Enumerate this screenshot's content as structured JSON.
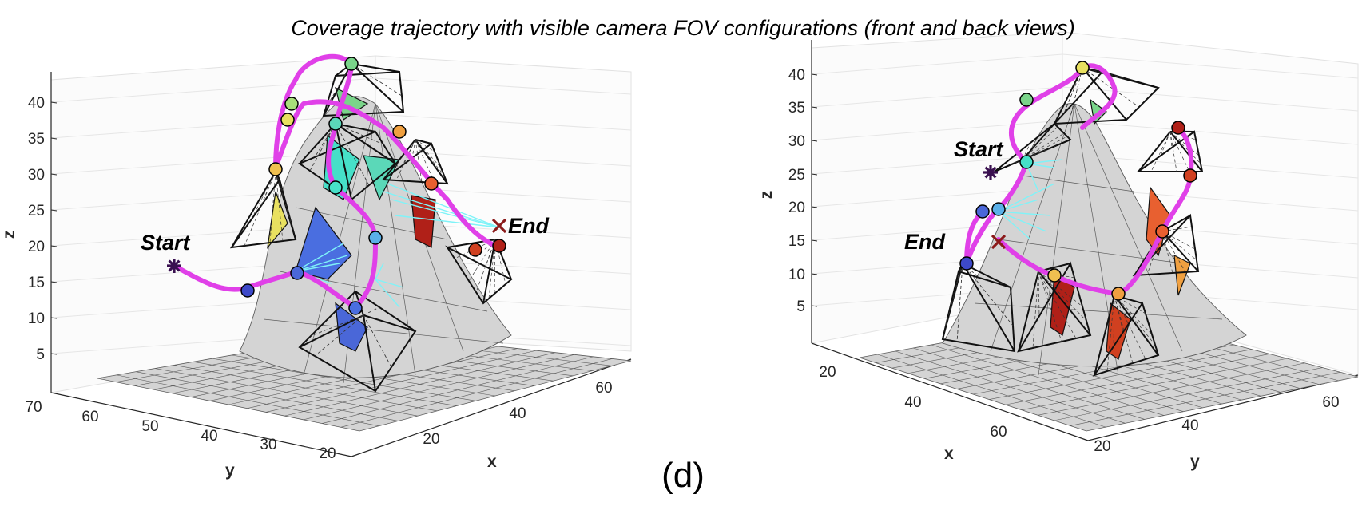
{
  "chart_data": {
    "type": "surface3d",
    "title": "Coverage trajectory with visible camera FOV configurations (front and back views)",
    "panel_label": "(d)",
    "colors": {
      "trajectory": "#e040e8",
      "surface": "#d4d4d4",
      "mesh": "#5a5a5a",
      "frustum": "#111111",
      "end_marker": "#8b1a1a",
      "start_marker": "#3a1050",
      "sensed": "#7ff3f8"
    },
    "views": [
      {
        "name": "front",
        "zlabel": "z",
        "xlabel": "x",
        "ylabel": "y",
        "z_ticks": [
          "5",
          "10",
          "15",
          "20",
          "25",
          "30",
          "35",
          "40"
        ],
        "x_ticks": [
          "20",
          "40",
          "60"
        ],
        "y_ticks": [
          "70",
          "60",
          "50",
          "40",
          "30",
          "20"
        ],
        "annotations": {
          "start": "Start",
          "end": "End"
        },
        "waypoint_colors": [
          "#3d49c9",
          "#4a67d8",
          "#4a6ee0",
          "#5ab0e8",
          "#46e0c8",
          "#5bd8b8",
          "#7ad48a",
          "#a8e07a",
          "#e8e060",
          "#f0c050",
          "#f0a040",
          "#e86030",
          "#d04020",
          "#b02018"
        ]
      },
      {
        "name": "back",
        "zlabel": "z",
        "xlabel": "x",
        "ylabel": "y",
        "z_ticks": [
          "5",
          "10",
          "15",
          "20",
          "25",
          "30",
          "35",
          "40"
        ],
        "x_ticks": [
          "20",
          "40",
          "60"
        ],
        "y_ticks": [
          "20",
          "40",
          "60"
        ],
        "annotations": {
          "start": "Start",
          "end": "End"
        },
        "waypoint_colors": [
          "#3d49c9",
          "#4a67d8",
          "#5ab0e8",
          "#46e0c8",
          "#7ad48a",
          "#e8e060",
          "#f0c050",
          "#f0a040",
          "#e86030",
          "#d04020",
          "#b02018"
        ]
      }
    ]
  }
}
